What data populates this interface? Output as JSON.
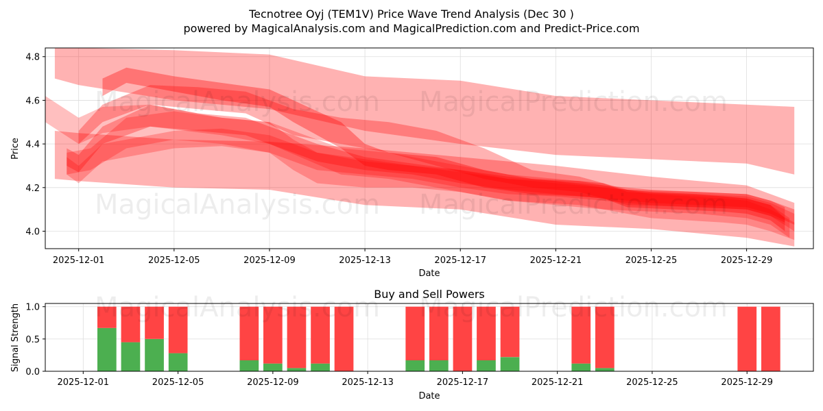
{
  "header": {
    "title": "Tecnotree Oyj (TEM1V) Price Wave Trend Analysis (Dec 30 )",
    "subtitle": "powered by MagicalAnalysis.com and MagicalPrediction.com and Predict-Price.com"
  },
  "watermarks": [
    "MagicalAnalysis.com",
    "MagicalPrediction.com"
  ],
  "colors": {
    "band": "#ff0000",
    "buy": "#4caf50",
    "sell": "#ff4444",
    "grid": "#dddddd"
  },
  "chart_data": [
    {
      "type": "area",
      "title": "",
      "xlabel": "Date",
      "ylabel": "Price",
      "xlim": [
        -1.4,
        30.8
      ],
      "ylim": [
        3.92,
        4.84
      ],
      "x_ticks": [
        {
          "x": 0,
          "label": "2025-12-01"
        },
        {
          "x": 4,
          "label": "2025-12-05"
        },
        {
          "x": 8,
          "label": "2025-12-09"
        },
        {
          "x": 12,
          "label": "2025-12-13"
        },
        {
          "x": 16,
          "label": "2025-12-17"
        },
        {
          "x": 20,
          "label": "2025-12-21"
        },
        {
          "x": 24,
          "label": "2025-12-25"
        },
        {
          "x": 28,
          "label": "2025-12-29"
        }
      ],
      "y_ticks": [
        4.0,
        4.2,
        4.4,
        4.6,
        4.8
      ],
      "grid": true,
      "bands": [
        {
          "name": "wide-upper",
          "opacity": 0.3,
          "x": [
            -1,
            0,
            4,
            8,
            12,
            16,
            20,
            24,
            28,
            30
          ],
          "upper": [
            4.84,
            4.84,
            4.83,
            4.81,
            4.71,
            4.69,
            4.62,
            4.6,
            4.58,
            4.57
          ],
          "lower": [
            4.7,
            4.67,
            4.6,
            4.56,
            4.46,
            4.4,
            4.35,
            4.33,
            4.31,
            4.26
          ]
        },
        {
          "name": "wide-lower",
          "opacity": 0.3,
          "x": [
            -1,
            0,
            4,
            8,
            12,
            16,
            20,
            24,
            28,
            30
          ],
          "upper": [
            4.46,
            4.45,
            4.42,
            4.41,
            4.38,
            4.34,
            4.3,
            4.25,
            4.21,
            4.13
          ],
          "lower": [
            4.24,
            4.23,
            4.2,
            4.19,
            4.12,
            4.1,
            4.03,
            4.01,
            3.97,
            3.93
          ]
        },
        {
          "name": "wave-a",
          "opacity": 0.25,
          "x": [
            -1.4,
            0,
            1,
            3,
            6,
            8,
            11,
            13,
            15,
            18,
            21,
            24,
            27,
            28,
            29,
            30
          ],
          "upper": [
            4.62,
            4.52,
            4.57,
            4.58,
            4.52,
            4.5,
            4.38,
            4.36,
            4.32,
            4.26,
            4.23,
            4.17,
            4.15,
            4.14,
            4.1,
            4.04
          ],
          "lower": [
            4.5,
            4.4,
            4.45,
            4.48,
            4.44,
            4.4,
            4.26,
            4.24,
            4.2,
            4.14,
            4.12,
            4.06,
            4.04,
            4.03,
            4.0,
            3.96
          ]
        },
        {
          "name": "wave-b",
          "opacity": 0.3,
          "x": [
            0,
            1,
            3,
            5,
            7,
            9,
            11,
            13,
            15,
            17,
            19,
            21,
            22,
            23,
            26,
            28,
            29,
            29.6
          ],
          "upper": [
            4.46,
            4.58,
            4.67,
            4.66,
            4.64,
            4.56,
            4.52,
            4.5,
            4.46,
            4.38,
            4.28,
            4.25,
            4.22,
            4.19,
            4.18,
            4.17,
            4.14,
            4.11
          ],
          "lower": [
            4.4,
            4.5,
            4.58,
            4.56,
            4.54,
            4.44,
            4.4,
            4.36,
            4.3,
            4.24,
            4.2,
            4.18,
            4.15,
            4.12,
            4.11,
            4.1,
            4.07,
            4.04
          ]
        },
        {
          "name": "wave-c",
          "opacity": 0.25,
          "x": [
            -0.5,
            0.5,
            2,
            4,
            6,
            8,
            9,
            10,
            12,
            14,
            16,
            18,
            20,
            22,
            24,
            26,
            28,
            29,
            29.8
          ],
          "upper": [
            4.36,
            4.38,
            4.52,
            4.55,
            4.52,
            4.5,
            4.42,
            4.36,
            4.32,
            4.3,
            4.28,
            4.24,
            4.22,
            4.2,
            4.18,
            4.17,
            4.15,
            4.12,
            4.06
          ],
          "lower": [
            4.26,
            4.28,
            4.38,
            4.42,
            4.4,
            4.36,
            4.28,
            4.22,
            4.2,
            4.2,
            4.18,
            4.14,
            4.12,
            4.1,
            4.09,
            4.08,
            4.06,
            4.03,
            3.97
          ]
        },
        {
          "name": "wave-d",
          "opacity": 0.25,
          "x": [
            -0.5,
            0,
            1,
            2,
            4,
            6,
            8,
            10,
            12,
            14,
            16,
            18,
            20,
            22,
            24,
            26,
            28,
            29,
            30
          ],
          "upper": [
            4.34,
            4.3,
            4.4,
            4.42,
            4.46,
            4.47,
            4.44,
            4.36,
            4.33,
            4.3,
            4.27,
            4.24,
            4.23,
            4.2,
            4.18,
            4.17,
            4.16,
            4.13,
            4.08
          ],
          "lower": [
            4.26,
            4.22,
            4.32,
            4.34,
            4.38,
            4.39,
            4.36,
            4.28,
            4.26,
            4.24,
            4.2,
            4.17,
            4.16,
            4.14,
            4.12,
            4.11,
            4.1,
            4.07,
            4.0
          ]
        },
        {
          "name": "wave-e",
          "opacity": 0.35,
          "x": [
            1,
            2,
            4,
            6,
            8,
            9,
            10,
            11,
            12,
            13,
            15,
            17,
            19,
            21,
            22,
            23,
            25,
            27,
            28,
            29,
            29.6
          ],
          "upper": [
            4.7,
            4.75,
            4.71,
            4.68,
            4.65,
            4.6,
            4.55,
            4.5,
            4.4,
            4.36,
            4.34,
            4.28,
            4.24,
            4.23,
            4.22,
            4.18,
            4.17,
            4.16,
            4.15,
            4.12,
            4.06
          ],
          "lower": [
            4.62,
            4.68,
            4.64,
            4.6,
            4.57,
            4.5,
            4.44,
            4.38,
            4.3,
            4.28,
            4.26,
            4.2,
            4.17,
            4.16,
            4.15,
            4.11,
            4.1,
            4.09,
            4.08,
            4.05,
            4.0
          ]
        },
        {
          "name": "wave-f",
          "opacity": 0.3,
          "x": [
            -0.5,
            0,
            1,
            3,
            5,
            7,
            8,
            10,
            12,
            14,
            16,
            18,
            20,
            22,
            24,
            26,
            28,
            29,
            30
          ],
          "upper": [
            4.38,
            4.35,
            4.48,
            4.58,
            4.54,
            4.52,
            4.48,
            4.4,
            4.34,
            4.31,
            4.28,
            4.25,
            4.23,
            4.21,
            4.19,
            4.18,
            4.17,
            4.14,
            4.1
          ],
          "lower": [
            4.3,
            4.27,
            4.4,
            4.48,
            4.46,
            4.44,
            4.4,
            4.32,
            4.28,
            4.26,
            4.22,
            4.19,
            4.17,
            4.15,
            4.13,
            4.12,
            4.11,
            4.08,
            4.03
          ]
        }
      ]
    },
    {
      "type": "bar",
      "title": "Buy and Sell Powers",
      "xlabel": "Date",
      "ylabel": "Signal Strength",
      "xlim": [
        -1.6,
        30.8
      ],
      "ylim": [
        0,
        1.05
      ],
      "x_ticks": [
        {
          "x": 0,
          "label": "2025-12-01"
        },
        {
          "x": 4,
          "label": "2025-12-05"
        },
        {
          "x": 8,
          "label": "2025-12-09"
        },
        {
          "x": 12,
          "label": "2025-12-13"
        },
        {
          "x": 16,
          "label": "2025-12-17"
        },
        {
          "x": 20,
          "label": "2025-12-21"
        },
        {
          "x": 24,
          "label": "2025-12-25"
        },
        {
          "x": 28,
          "label": "2025-12-29"
        }
      ],
      "y_ticks": [
        0.0,
        0.5,
        1.0
      ],
      "bar_width": 0.8,
      "x": [
        1,
        2,
        3,
        4,
        7,
        8,
        9,
        10,
        11,
        14,
        15,
        16,
        17,
        18,
        21,
        22,
        28,
        29
      ],
      "series": [
        {
          "name": "Buy",
          "color": "#4caf50",
          "values": [
            0.67,
            0.45,
            0.5,
            0.28,
            0.17,
            0.12,
            0.05,
            0.12,
            0.0,
            0.17,
            0.17,
            0.0,
            0.17,
            0.22,
            0.12,
            0.05,
            0.0,
            0.0
          ]
        },
        {
          "name": "Sell",
          "color": "#ff4444",
          "values": [
            0.33,
            0.55,
            0.5,
            0.72,
            0.83,
            0.88,
            0.95,
            0.88,
            1.0,
            0.83,
            0.83,
            1.0,
            0.83,
            0.78,
            0.88,
            0.95,
            1.0,
            1.0
          ]
        }
      ]
    }
  ]
}
